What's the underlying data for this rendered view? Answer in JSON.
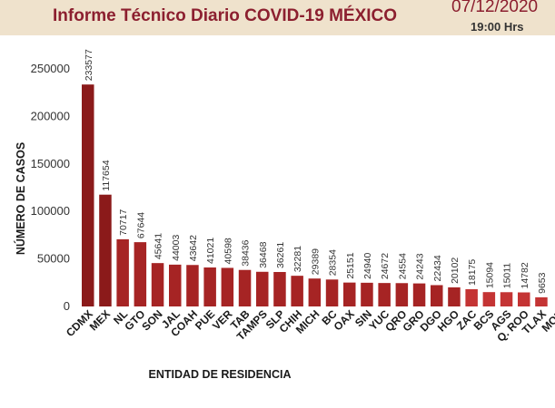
{
  "header": {
    "title": "Informe Técnico Diario COVID-19 MÉXICO",
    "date": "07/12/2020",
    "time": "19:00 Hrs"
  },
  "colors": {
    "header_bg": "#efe2cc",
    "title": "#8c1f2f",
    "bar_dark": "#8b1a1a",
    "bar_mid": "#a62424",
    "bar_light": "#c43434"
  },
  "chart_data": {
    "type": "bar",
    "xlabel": "ENTIDAD DE RESIDENCIA",
    "ylabel": "NÚMERO DE CASOS",
    "ylim": [
      0,
      250000
    ],
    "yticks": [
      0,
      50000,
      100000,
      150000,
      200000,
      250000
    ],
    "grid": false,
    "categories": [
      "CDMX",
      "MEX",
      "NL",
      "GTO",
      "SON",
      "JAL",
      "COAH",
      "PUE",
      "VER",
      "TAB",
      "TAMPS",
      "SLP",
      "CHIH",
      "MICH",
      "BC",
      "OAX",
      "SIN",
      "YUC",
      "QRO",
      "GRO",
      "DGO",
      "HGO",
      "ZAC",
      "BCS",
      "AGS",
      "Q. ROO",
      "TLAX",
      "MOR"
    ],
    "values": [
      233577,
      117654,
      70717,
      67644,
      45641,
      44003,
      43642,
      41021,
      40598,
      38436,
      36468,
      36261,
      32281,
      29389,
      28354,
      25151,
      24940,
      24672,
      24554,
      24243,
      22434,
      20102,
      18175,
      15094,
      15011,
      14782,
      9653,
      null
    ]
  }
}
